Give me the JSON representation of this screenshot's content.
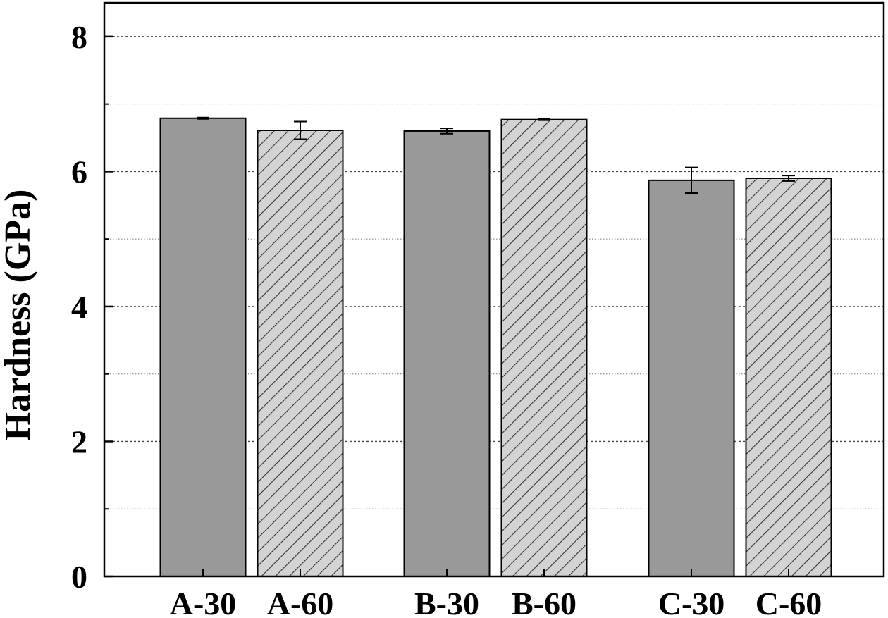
{
  "chart_data": {
    "type": "bar",
    "title": "",
    "xlabel": "",
    "ylabel": "Hardness (GPa)",
    "ylim": [
      0,
      8.5
    ],
    "yticks": [
      0,
      2,
      4,
      6,
      8
    ],
    "ytick_labels": [
      "0",
      "2",
      "4",
      "6",
      "8"
    ],
    "minor_gridlines": [
      1,
      3,
      5,
      7
    ],
    "grid": true,
    "legend": "none",
    "categories": [
      "A-30",
      "A-60",
      "B-30",
      "B-60",
      "C-30",
      "C-60"
    ],
    "values": [
      6.79,
      6.61,
      6.6,
      6.77,
      5.87,
      5.9
    ],
    "errors": [
      0.01,
      0.13,
      0.04,
      0.01,
      0.19,
      0.04
    ],
    "styles": [
      "solid",
      "hatched",
      "solid",
      "hatched",
      "solid",
      "hatched"
    ],
    "colors": {
      "solid_fill": "#999999",
      "hatched_fill": "#d3d3d3",
      "hatch_line": "#333333",
      "axis": "#000000",
      "grid": "#444444"
    }
  }
}
